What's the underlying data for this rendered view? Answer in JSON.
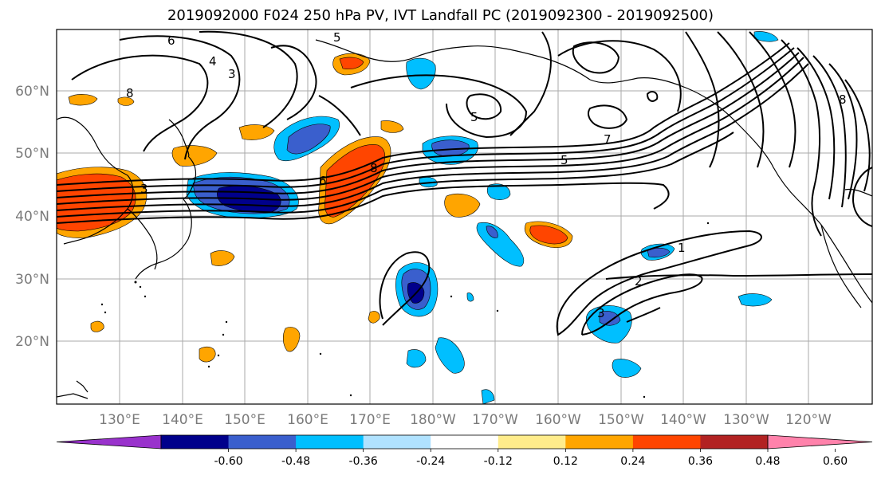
{
  "title": "2019092000 F024 250 hPa PV, IVT Landfall PC (2019092300 - 2019092500)",
  "lat_labels": [
    "60°N",
    "50°N",
    "40°N",
    "30°N",
    "20°N"
  ],
  "lon_labels": [
    "130°E",
    "140°E",
    "150°E",
    "160°E",
    "170°E",
    "180°W",
    "170°W",
    "160°W",
    "150°W",
    "140°W",
    "130°W",
    "120°W"
  ],
  "colorbar": {
    "colors": [
      "#9932cc",
      "#00008b",
      "#3a5fcd",
      "#00bfff",
      "#b0e2ff",
      "#ffffff",
      "#ffec8b",
      "#ffa500",
      "#ff4500",
      "#b22222",
      "#ff82ab"
    ],
    "tick_labels": [
      "-0.60",
      "-0.48",
      "-0.36",
      "-0.24",
      "-0.12",
      "0.12",
      "0.24",
      "0.36",
      "0.48",
      "0.60"
    ]
  },
  "contour_labels": {
    "c1": "7",
    "c2": "5",
    "c3": "8",
    "c4": "6",
    "c5": "3",
    "c6": "1",
    "c7": "2",
    "c8": "3",
    "c9": "5",
    "c10": "6",
    "c11": "4",
    "c12": "3",
    "c13": "8",
    "c14": "5",
    "c15": "8"
  }
}
